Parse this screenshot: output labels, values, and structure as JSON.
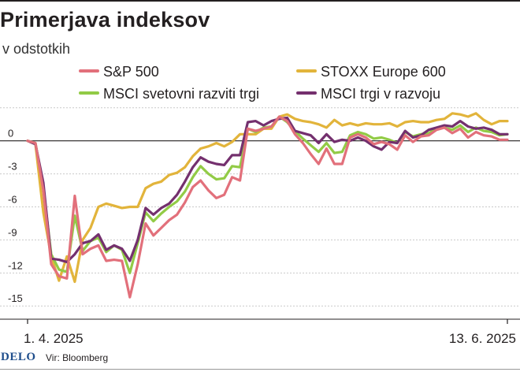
{
  "header": {
    "title": "Primerjava indeksov",
    "subtitle": "v odstotkih"
  },
  "footer": {
    "logo": "DELO",
    "source": "Vir: Bloomberg"
  },
  "chart_data": {
    "type": "line",
    "title": "Primerjava indeksov",
    "subtitle": "v odstotkih",
    "xlabel": "",
    "ylabel": "",
    "x_tick_labels": [
      "1. 4. 2025",
      "13. 6. 2025"
    ],
    "y_ticks": [
      0,
      -3,
      -6,
      -9,
      -12,
      -15
    ],
    "ylim": [
      -16.2,
      3.2
    ],
    "grid": "horizontal",
    "legend": "top",
    "x": [
      0,
      1,
      2,
      3,
      4,
      5,
      6,
      7,
      8,
      9,
      10,
      11,
      12,
      13,
      14,
      15,
      16,
      17,
      18,
      19,
      20,
      21,
      22,
      23,
      24,
      25,
      26,
      27,
      28,
      29,
      30,
      31,
      32,
      33,
      34,
      35,
      36,
      37,
      38,
      39,
      40,
      41,
      42,
      43,
      44,
      45,
      46,
      47,
      48,
      49,
      50,
      51,
      52,
      53,
      54,
      55,
      56,
      57,
      58,
      59,
      60,
      61
    ],
    "series": [
      {
        "name": "S&P 500",
        "color": "#e2707b",
        "values": [
          0,
          -0.2,
          -4.5,
          -11.2,
          -12.3,
          -12.5,
          -5,
          -10.3,
          -9.8,
          -9.5,
          -10.9,
          -10.8,
          -10.9,
          -14.2,
          -11.2,
          -7.5,
          -8.6,
          -7.9,
          -7.2,
          -6.7,
          -5.6,
          -4.2,
          -3.6,
          -4.5,
          -5.2,
          -4.9,
          -3.3,
          -3.6,
          1.1,
          0.9,
          1.1,
          1.3,
          2.2,
          1.8,
          0.6,
          -0.2,
          -1.2,
          -2.1,
          -0.7,
          -2.1,
          -2.1,
          0.3,
          0.6,
          0.3,
          -0.3,
          -0.1,
          -0.3,
          -0.8,
          0.5,
          -0.1,
          0.4,
          0.5,
          1,
          1.2,
          0.7,
          1.1,
          0.3,
          0.8,
          0.5,
          0.4,
          0.1,
          0.1
        ]
      },
      {
        "name": "STOXX Europe 600",
        "color": "#e2b43b",
        "values": [
          0,
          -0.3,
          -6.5,
          -10.5,
          -12.7,
          -10.5,
          -12.8,
          -9,
          -7.9,
          -6,
          -5.7,
          -5.9,
          -6.1,
          -6,
          -6,
          -4.3,
          -3.9,
          -3.7,
          -3.1,
          -2.9,
          -2.4,
          -1.4,
          -0.7,
          -0.5,
          -0.2,
          -0.5,
          -0.1,
          0.6,
          0.6,
          0.6,
          1.1,
          1.1,
          2.2,
          2.4,
          2,
          1.8,
          1.7,
          1.5,
          1.2,
          1.9,
          1.4,
          1.6,
          1.4,
          1.6,
          1.5,
          1.5,
          1.6,
          1.3,
          1.7,
          1.8,
          1.7,
          1.7,
          1.9,
          2,
          2.5,
          2.4,
          2.2,
          2.5,
          1.9,
          1.5,
          1.8,
          1.8
        ]
      },
      {
        "name": "MSCI svetovni razviti trgi",
        "color": "#92cb46",
        "values": [
          0,
          -0.2,
          -4.3,
          -10.3,
          -11.7,
          -11.9,
          -6.8,
          -10,
          -9.1,
          -8.8,
          -10.1,
          -9.5,
          -9.9,
          -12,
          -9.3,
          -6.5,
          -7.3,
          -6.6,
          -6,
          -5.5,
          -4.6,
          -3.3,
          -2.3,
          -3,
          -3.5,
          -3.4,
          -2.3,
          -2.4,
          1.1,
          0.8,
          1.2,
          1.3,
          2.2,
          1.7,
          0.9,
          0.2,
          -0.4,
          -1,
          -0.2,
          -1.1,
          -1,
          0.5,
          0.8,
          0.6,
          0.2,
          0.3,
          0.1,
          -0.2,
          0.8,
          0.4,
          0.6,
          0.7,
          1.1,
          1.2,
          1,
          1.4,
          0.8,
          1.2,
          0.9,
          0.8,
          0.5,
          0.6
        ]
      },
      {
        "name": "MSCI trgi v razvoju",
        "color": "#74306e",
        "values": [
          0,
          -0.3,
          -3.8,
          -10.7,
          -10.8,
          -11,
          -10.3,
          -9.3,
          -9.1,
          -8.5,
          -9.9,
          -9.5,
          -9.8,
          -10.9,
          -9,
          -6.1,
          -6.7,
          -6.1,
          -5.7,
          -4.9,
          -3.7,
          -2.4,
          -1.5,
          -1.9,
          -2.1,
          -2.2,
          -1.3,
          -1.3,
          1.7,
          1.8,
          1.4,
          1.8,
          2,
          2.1,
          0.9,
          0.7,
          0.5,
          -0.2,
          0.6,
          -0.1,
          0.1,
          0,
          0.3,
          0,
          -0.5,
          -0.8,
          -0.1,
          -0.2,
          0.9,
          0.3,
          0.5,
          1,
          1.2,
          1.4,
          1.3,
          1.8,
          1.3,
          1.1,
          1.2,
          1,
          0.6,
          0.6
        ]
      }
    ]
  }
}
